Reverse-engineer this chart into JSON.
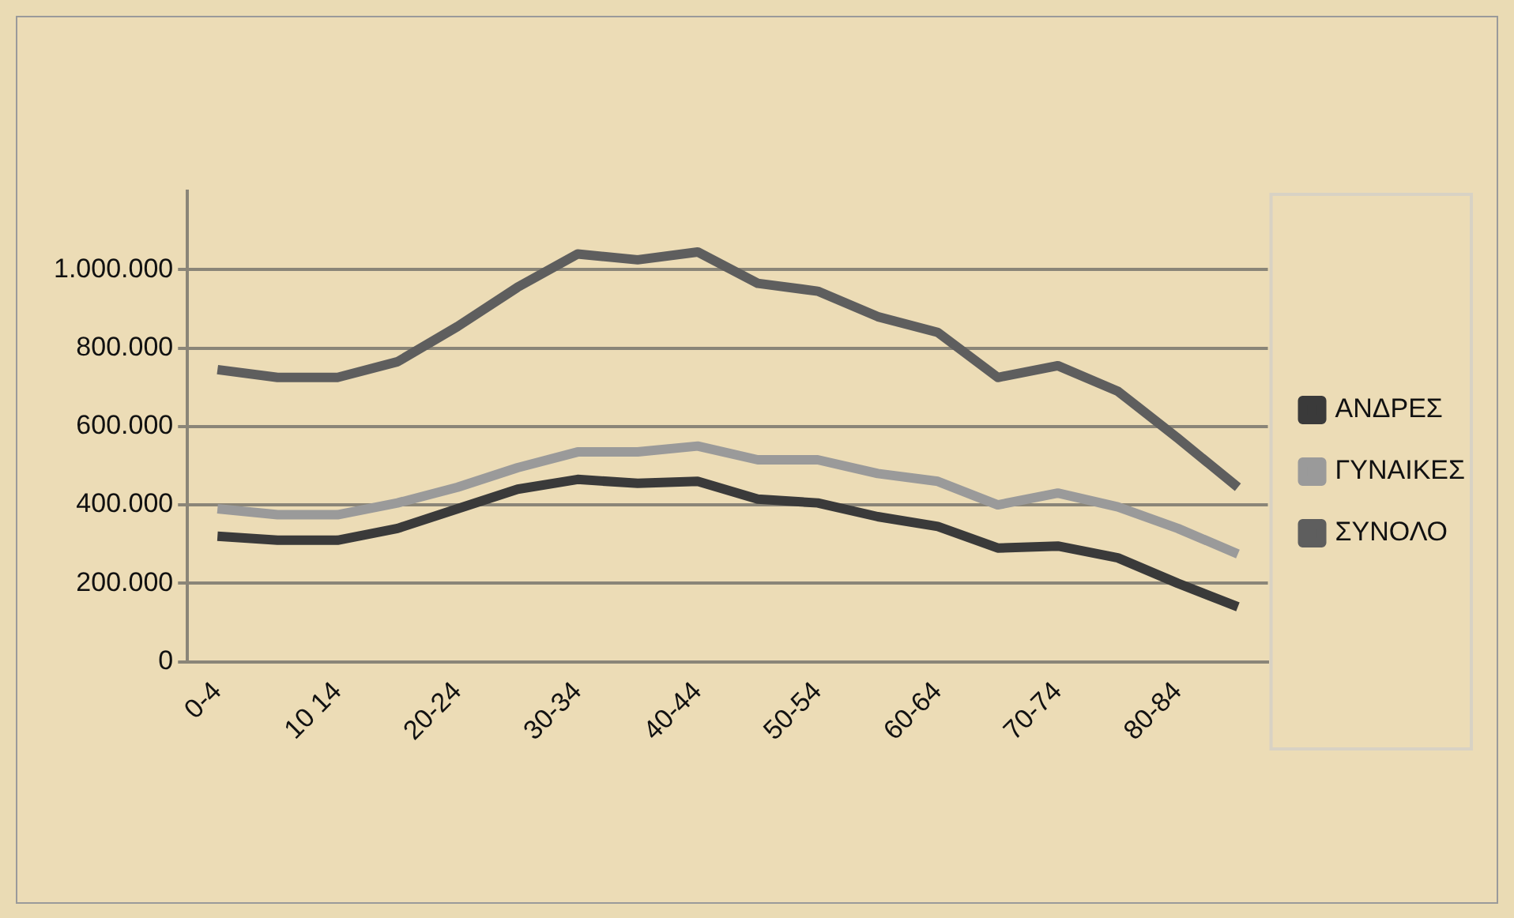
{
  "chart_data": {
    "type": "line",
    "categories": [
      "0-4",
      null,
      "10 14",
      null,
      "20-24",
      null,
      "30-34",
      null,
      "40-44",
      null,
      "50-54",
      null,
      "60-64",
      null,
      "70-74",
      null,
      "80-84",
      null
    ],
    "series": [
      {
        "name": "ΑΝΔΡΕΣ",
        "color": "#3a3a3a",
        "values": [
          320000,
          310000,
          310000,
          340000,
          390000,
          440000,
          465000,
          455000,
          460000,
          415000,
          405000,
          370000,
          345000,
          290000,
          295000,
          265000,
          200000,
          140000
        ]
      },
      {
        "name": "ΓΥΝΑΙΚΕΣ",
        "color": "#9a9a9a",
        "values": [
          390000,
          375000,
          375000,
          405000,
          445000,
          495000,
          535000,
          535000,
          550000,
          515000,
          515000,
          480000,
          460000,
          400000,
          430000,
          395000,
          340000,
          275000
        ]
      },
      {
        "name": "ΣΥΝΟΛΟ",
        "color": "#5e5e5e",
        "values": [
          745000,
          725000,
          725000,
          765000,
          855000,
          955000,
          1040000,
          1025000,
          1045000,
          965000,
          945000,
          880000,
          840000,
          725000,
          755000,
          690000,
          570000,
          445000
        ]
      }
    ],
    "ylim": [
      0,
      1200000
    ],
    "yticks": [
      {
        "value": 0,
        "label": "0"
      },
      {
        "value": 200000,
        "label": "200.000"
      },
      {
        "value": 400000,
        "label": "400.000"
      },
      {
        "value": 600000,
        "label": "600.000"
      },
      {
        "value": 800000,
        "label": "800.000"
      },
      {
        "value": 1000000,
        "label": "1.000.000"
      }
    ],
    "grid": "y",
    "legend": "right",
    "marker": "none",
    "line_style": "solid"
  }
}
